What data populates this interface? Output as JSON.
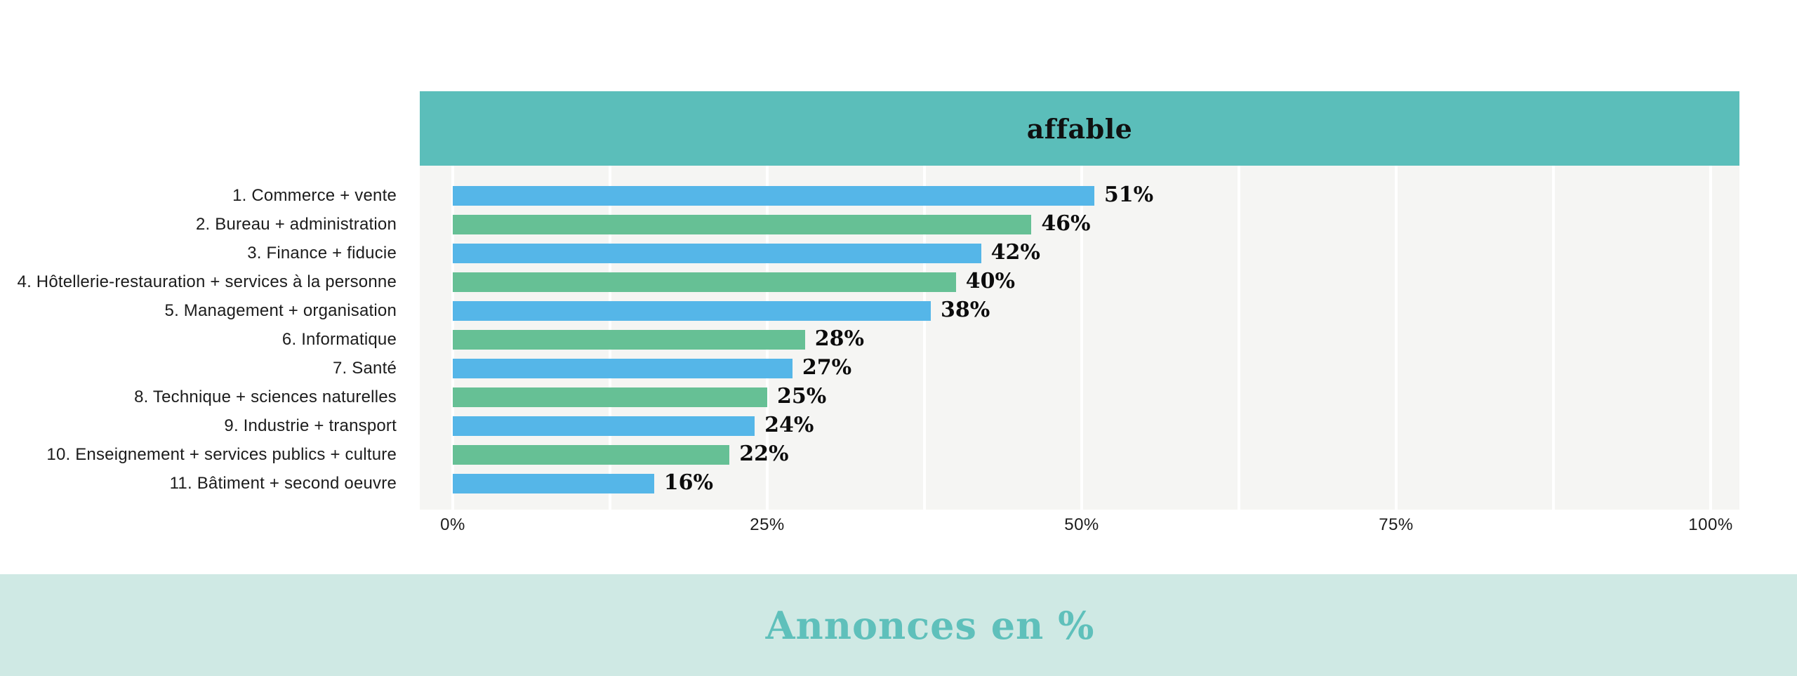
{
  "header": {
    "brand": "affable"
  },
  "footer": {
    "caption": "Annonces en %"
  },
  "colors": {
    "header_band": "#5bbeba",
    "plot_bg": "#f5f5f3",
    "gridline": "#ffffff",
    "bar_blue": "#55b6e8",
    "bar_green": "#66c095",
    "value_text": "#0c0c0c",
    "label_text": "#1c1c1c",
    "footer_bg": "#cfe9e4",
    "footer_text": "#5fc0bb"
  },
  "chart_data": {
    "type": "bar",
    "orientation": "horizontal",
    "title": "affable",
    "xlabel": "Annonces en %",
    "categories": [
      "1. Commerce + vente",
      "2. Bureau + administration",
      "3. Finance + fiducie",
      "4. Hôtellerie-restauration + services à la personne",
      "5. Management + organisation",
      "6. Informatique",
      "7. Santé",
      "8. Technique + sciences naturelles",
      "9. Industrie + transport",
      "10. Enseignement + services publics + culture",
      "11. Bâtiment + second oeuvre"
    ],
    "values": [
      51,
      46,
      42,
      40,
      38,
      28,
      27,
      25,
      24,
      22,
      16
    ],
    "value_labels": [
      "51%",
      "46%",
      "42%",
      "40%",
      "38%",
      "28%",
      "27%",
      "25%",
      "24%",
      "22%",
      "16%"
    ],
    "x_ticks": [
      "0%",
      "25%",
      "50%",
      "75%",
      "100%"
    ],
    "x_tick_values": [
      0,
      25,
      50,
      75,
      100
    ],
    "xlim": [
      0,
      100
    ],
    "grid": {
      "vertical": true,
      "minor_step_percent": 12.5
    },
    "legend": "none",
    "bar_color_pattern_alternating": [
      "#55b6e8",
      "#66c095"
    ]
  }
}
